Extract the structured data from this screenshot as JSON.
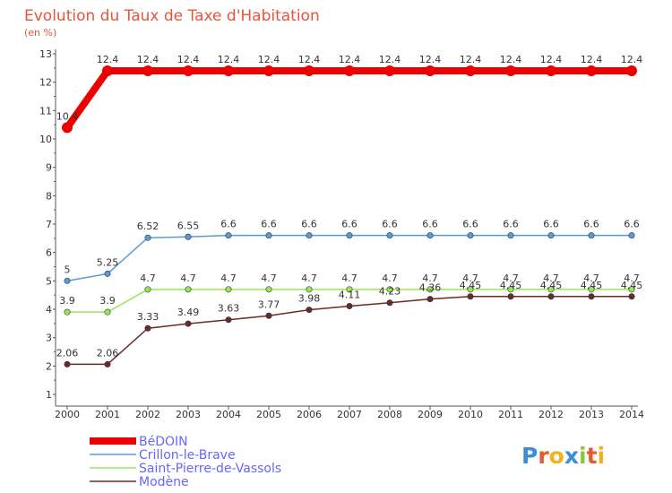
{
  "chart_data": {
    "type": "line",
    "title": "Evolution du Taux de Taxe d'Habitation",
    "subtitle": "(en %)",
    "xlabel": "",
    "ylabel": "(en %)",
    "ylim": [
      1,
      13
    ],
    "yticks": [
      "1",
      "2",
      "3",
      "4",
      "5",
      "6",
      "7",
      "8",
      "9",
      "10",
      "11",
      "12",
      "13"
    ],
    "x": [
      "2000",
      "2001",
      "2002",
      "2003",
      "2004",
      "2005",
      "2006",
      "2007",
      "2008",
      "2009",
      "2010",
      "2011",
      "2012",
      "2013",
      "2014"
    ],
    "series": [
      {
        "name": "BéDOIN",
        "color": "#ee0000",
        "values": [
          10.4,
          12.4,
          12.4,
          12.4,
          12.4,
          12.4,
          12.4,
          12.4,
          12.4,
          12.4,
          12.4,
          12.4,
          12.4,
          12.4,
          12.4
        ],
        "labels": [
          "10.4",
          "12.4",
          "12.4",
          "12.4",
          "12.4",
          "12.4",
          "12.4",
          "12.4",
          "12.4",
          "12.4",
          "12.4",
          "12.4",
          "12.4",
          "12.4",
          "12.4"
        ]
      },
      {
        "name": "Crillon-le-Brave",
        "color": "#5b9bd5",
        "values": [
          5,
          5.25,
          6.52,
          6.55,
          6.6,
          6.6,
          6.6,
          6.6,
          6.6,
          6.6,
          6.6,
          6.6,
          6.6,
          6.6,
          6.6
        ],
        "labels": [
          "5",
          "5.25",
          "6.52",
          "6.55",
          "6.6",
          "6.6",
          "6.6",
          "6.6",
          "6.6",
          "6.6",
          "6.6",
          "6.6",
          "6.6",
          "6.6",
          "6.6"
        ]
      },
      {
        "name": "Saint-Pierre-de-Vassols",
        "color": "#99e55a",
        "values": [
          3.9,
          3.9,
          4.7,
          4.7,
          4.7,
          4.7,
          4.7,
          4.7,
          4.7,
          4.7,
          4.7,
          4.7,
          4.7,
          4.7,
          4.7
        ],
        "labels": [
          "3.9",
          "3.9",
          "4.7",
          "4.7",
          "4.7",
          "4.7",
          "4.7",
          "4.7",
          "4.7",
          "4.7",
          "4.7",
          "4.7",
          "4.7",
          "4.7",
          "4.7"
        ]
      },
      {
        "name": "Modène",
        "color": "#6b2a2a",
        "values": [
          2.06,
          2.06,
          3.33,
          3.49,
          3.63,
          3.77,
          3.98,
          4.11,
          4.23,
          4.36,
          4.45,
          4.45,
          4.45,
          4.45,
          4.45
        ],
        "labels": [
          "2.06",
          "2.06",
          "3.33",
          "3.49",
          "3.63",
          "3.77",
          "3.98",
          "4.11",
          "4.23",
          "4.36",
          "4.45",
          "4.45",
          "4.45",
          "4.45",
          "4.45"
        ]
      }
    ],
    "legend": "bottom-left",
    "grid": false
  },
  "logo_text": "Proxiti",
  "colors": {
    "title": "#e8543a",
    "axis": "#555555",
    "tick_text": "#333333",
    "label_text": "#333333",
    "legend_text": "#6666ff"
  }
}
